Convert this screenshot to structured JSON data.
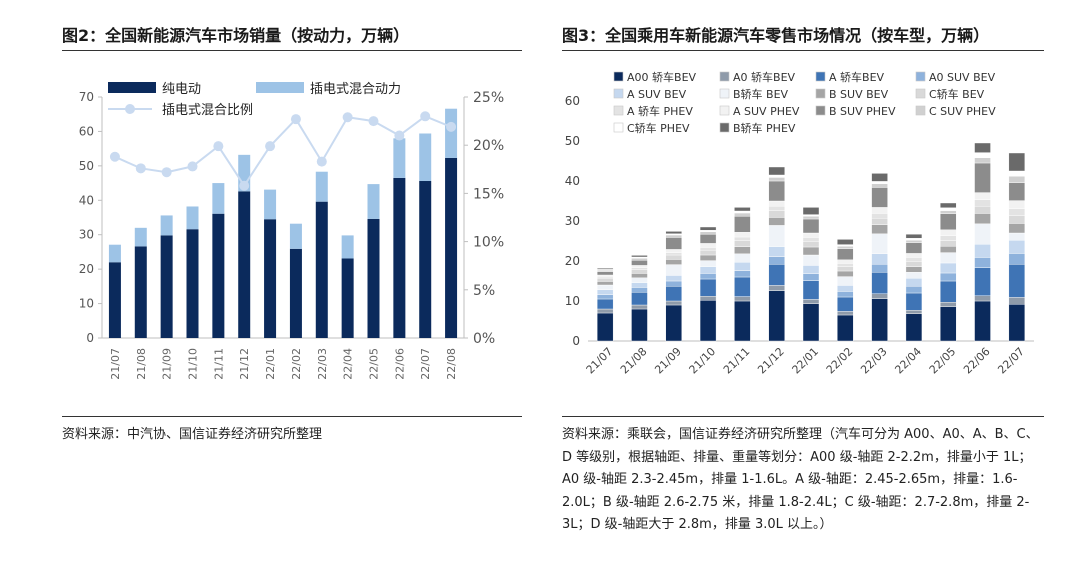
{
  "charts": [
    {
      "figure_title": "图2：全国新能源汽车市场销量（按动力，万辆）",
      "source": "资料来源：中汽协、国信证券经济研究所整理"
    },
    {
      "figure_title": "图3：全国乘用车新能源汽车零售市场情况（按车型，万辆）",
      "source": "资料来源：乘联会，国信证券经济研究所整理（汽车可分为 A00、A0、A、B、C、D 等级别，根据轴距、排量、重量等划分：A00 级-轴距 2-2.2m，排量小于 1L；A0 级-轴距 2.3-2.45m，排量 1-1.6L。A 级-轴距：2.45-2.65m，排量：1.6-2.0L；B 级-轴距 2.6-2.75 米，排量 1.8-2.4L；C 级-轴距：2.7-2.8m，排量 2-3L；D 级-轴距大于 2.8m，排量 3.0L 以上。）"
    }
  ],
  "chart_data": [
    {
      "type": "bar",
      "title": "图2：全国新能源汽车市场销量（按动力，万辆）",
      "stacked": true,
      "categories": [
        "21/07",
        "21/08",
        "21/09",
        "21/10",
        "21/11",
        "21/12",
        "22/01",
        "22/02",
        "22/03",
        "22/04",
        "22/05",
        "22/06",
        "22/07",
        "22/08"
      ],
      "series": [
        {
          "name": "纯电动",
          "type": "bar",
          "axis": "left",
          "color": "#0b2a5c",
          "values": [
            22.0,
            26.6,
            29.8,
            31.6,
            36.1,
            42.6,
            34.5,
            25.9,
            39.6,
            23.1,
            34.6,
            46.5,
            45.6,
            52.3
          ]
        },
        {
          "name": "插电式混合动力",
          "type": "bar",
          "axis": "left",
          "color": "#9dc3e6",
          "values": [
            5.1,
            5.4,
            5.8,
            6.6,
            8.9,
            10.6,
            8.6,
            7.3,
            8.7,
            6.7,
            10.1,
            11.5,
            13.8,
            14.3
          ]
        },
        {
          "name": "插电式混合比例",
          "type": "line",
          "axis": "right",
          "color": "#c9daf0",
          "values": [
            18.8,
            17.6,
            17.2,
            17.8,
            19.9,
            15.8,
            19.9,
            22.7,
            18.3,
            22.9,
            22.5,
            21.0,
            23.0,
            21.9
          ]
        }
      ],
      "y_left": {
        "min": 0,
        "max": 70,
        "ticks": [
          "0",
          "10",
          "20",
          "30",
          "40",
          "50",
          "60",
          "70"
        ]
      },
      "y_right": {
        "min": 0,
        "max": 25,
        "ticks": [
          "0%",
          "5%",
          "10%",
          "15%",
          "20%",
          "25%"
        ]
      },
      "legend_position": "top-left"
    },
    {
      "type": "bar",
      "title": "图3：全国乘用车新能源汽车零售市场情况（按车型，万辆）",
      "stacked": true,
      "categories": [
        "21/07",
        "21/08",
        "21/09",
        "21/10",
        "21/11",
        "21/12",
        "22/01",
        "22/02",
        "22/03",
        "22/04",
        "22/05",
        "22/06",
        "22/07"
      ],
      "ylim": [
        0,
        60
      ],
      "y_ticks": [
        "0",
        "10",
        "20",
        "30",
        "40",
        "50",
        "60"
      ],
      "legend_position": "top",
      "series": [
        {
          "name": "A00 轿车BEV",
          "color": "#0b2a5c",
          "values": [
            7.0,
            8.0,
            9.0,
            10.2,
            10.0,
            12.6,
            9.3,
            6.5,
            10.6,
            6.8,
            8.6,
            10.0,
            9.2
          ]
        },
        {
          "name": "A0 轿车BEV",
          "color": "#8f9baa",
          "values": [
            1.0,
            1.0,
            1.0,
            1.0,
            1.1,
            1.3,
            1.1,
            0.9,
            1.2,
            0.9,
            1.1,
            1.3,
            1.7
          ]
        },
        {
          "name": "A 轿车BEV",
          "color": "#3f74b5",
          "values": [
            2.5,
            3.2,
            3.7,
            4.3,
            4.9,
            5.3,
            4.7,
            3.6,
            5.4,
            4.3,
            5.3,
            7.0,
            8.3
          ]
        },
        {
          "name": "A0 SUV BEV",
          "color": "#8eb2dc",
          "values": [
            1.1,
            1.2,
            1.3,
            1.4,
            1.6,
            1.9,
            1.7,
            1.4,
            2.0,
            1.7,
            2.0,
            2.6,
            2.7
          ]
        },
        {
          "name": "A SUV BEV",
          "color": "#c5d8ef",
          "values": [
            1.2,
            1.2,
            1.4,
            1.7,
            2.1,
            2.5,
            2.1,
            1.5,
            2.6,
            2.0,
            2.5,
            3.3,
            3.3
          ]
        },
        {
          "name": "B轿车 BEV",
          "color": "#eff3f8",
          "values": [
            1.2,
            1.2,
            2.7,
            1.5,
            2.1,
            5.3,
            2.6,
            2.2,
            5.0,
            1.5,
            2.6,
            5.1,
            1.8
          ]
        },
        {
          "name": "B SUV BEV",
          "color": "#a5a5a5",
          "values": [
            0.9,
            1.1,
            1.3,
            1.4,
            1.8,
            2.0,
            2.0,
            1.4,
            2.3,
            1.4,
            1.6,
            2.6,
            2.4
          ]
        },
        {
          "name": "C轿车 BEV",
          "color": "#d9d9d9",
          "values": [
            0.8,
            0.9,
            1.1,
            1.2,
            1.5,
            1.7,
            1.4,
            1.1,
            1.6,
            1.3,
            1.4,
            1.8,
            1.9
          ]
        },
        {
          "name": "A 轿车 PHEV",
          "color": "#e3e3e3",
          "values": [
            0.3,
            0.5,
            0.6,
            0.7,
            0.9,
            1.1,
            1.0,
            0.8,
            1.2,
            1.0,
            1.2,
            1.6,
            1.8
          ]
        },
        {
          "name": "A SUV PHEV",
          "color": "#f2f2f2",
          "values": [
            0.5,
            0.6,
            0.8,
            1.0,
            1.2,
            1.3,
            1.1,
            0.9,
            1.5,
            1.0,
            1.5,
            1.8,
            2.0
          ]
        },
        {
          "name": "B SUV PHEV",
          "color": "#8c8c8c",
          "values": [
            0.8,
            1.3,
            3.0,
            2.3,
            4.0,
            5.0,
            3.5,
            2.8,
            5.0,
            2.7,
            4.0,
            7.4,
            4.5
          ]
        },
        {
          "name": "C SUV PHEV",
          "color": "#d0d0d0",
          "values": [
            0.4,
            0.5,
            0.6,
            0.6,
            0.8,
            0.9,
            0.7,
            0.6,
            0.9,
            0.6,
            0.8,
            1.3,
            1.6
          ]
        },
        {
          "name": "C轿车 PHEV",
          "color": "#ffffff",
          "values": [
            0.2,
            0.3,
            0.3,
            0.4,
            0.5,
            0.6,
            0.4,
            0.4,
            0.6,
            0.5,
            0.7,
            1.3,
            1.3
          ]
        },
        {
          "name": "B轿车 PHEV",
          "color": "#6a6a6a",
          "values": [
            0.3,
            0.4,
            0.6,
            0.8,
            0.9,
            2.0,
            1.8,
            1.3,
            2.0,
            1.0,
            1.2,
            2.4,
            4.5
          ]
        }
      ]
    }
  ]
}
